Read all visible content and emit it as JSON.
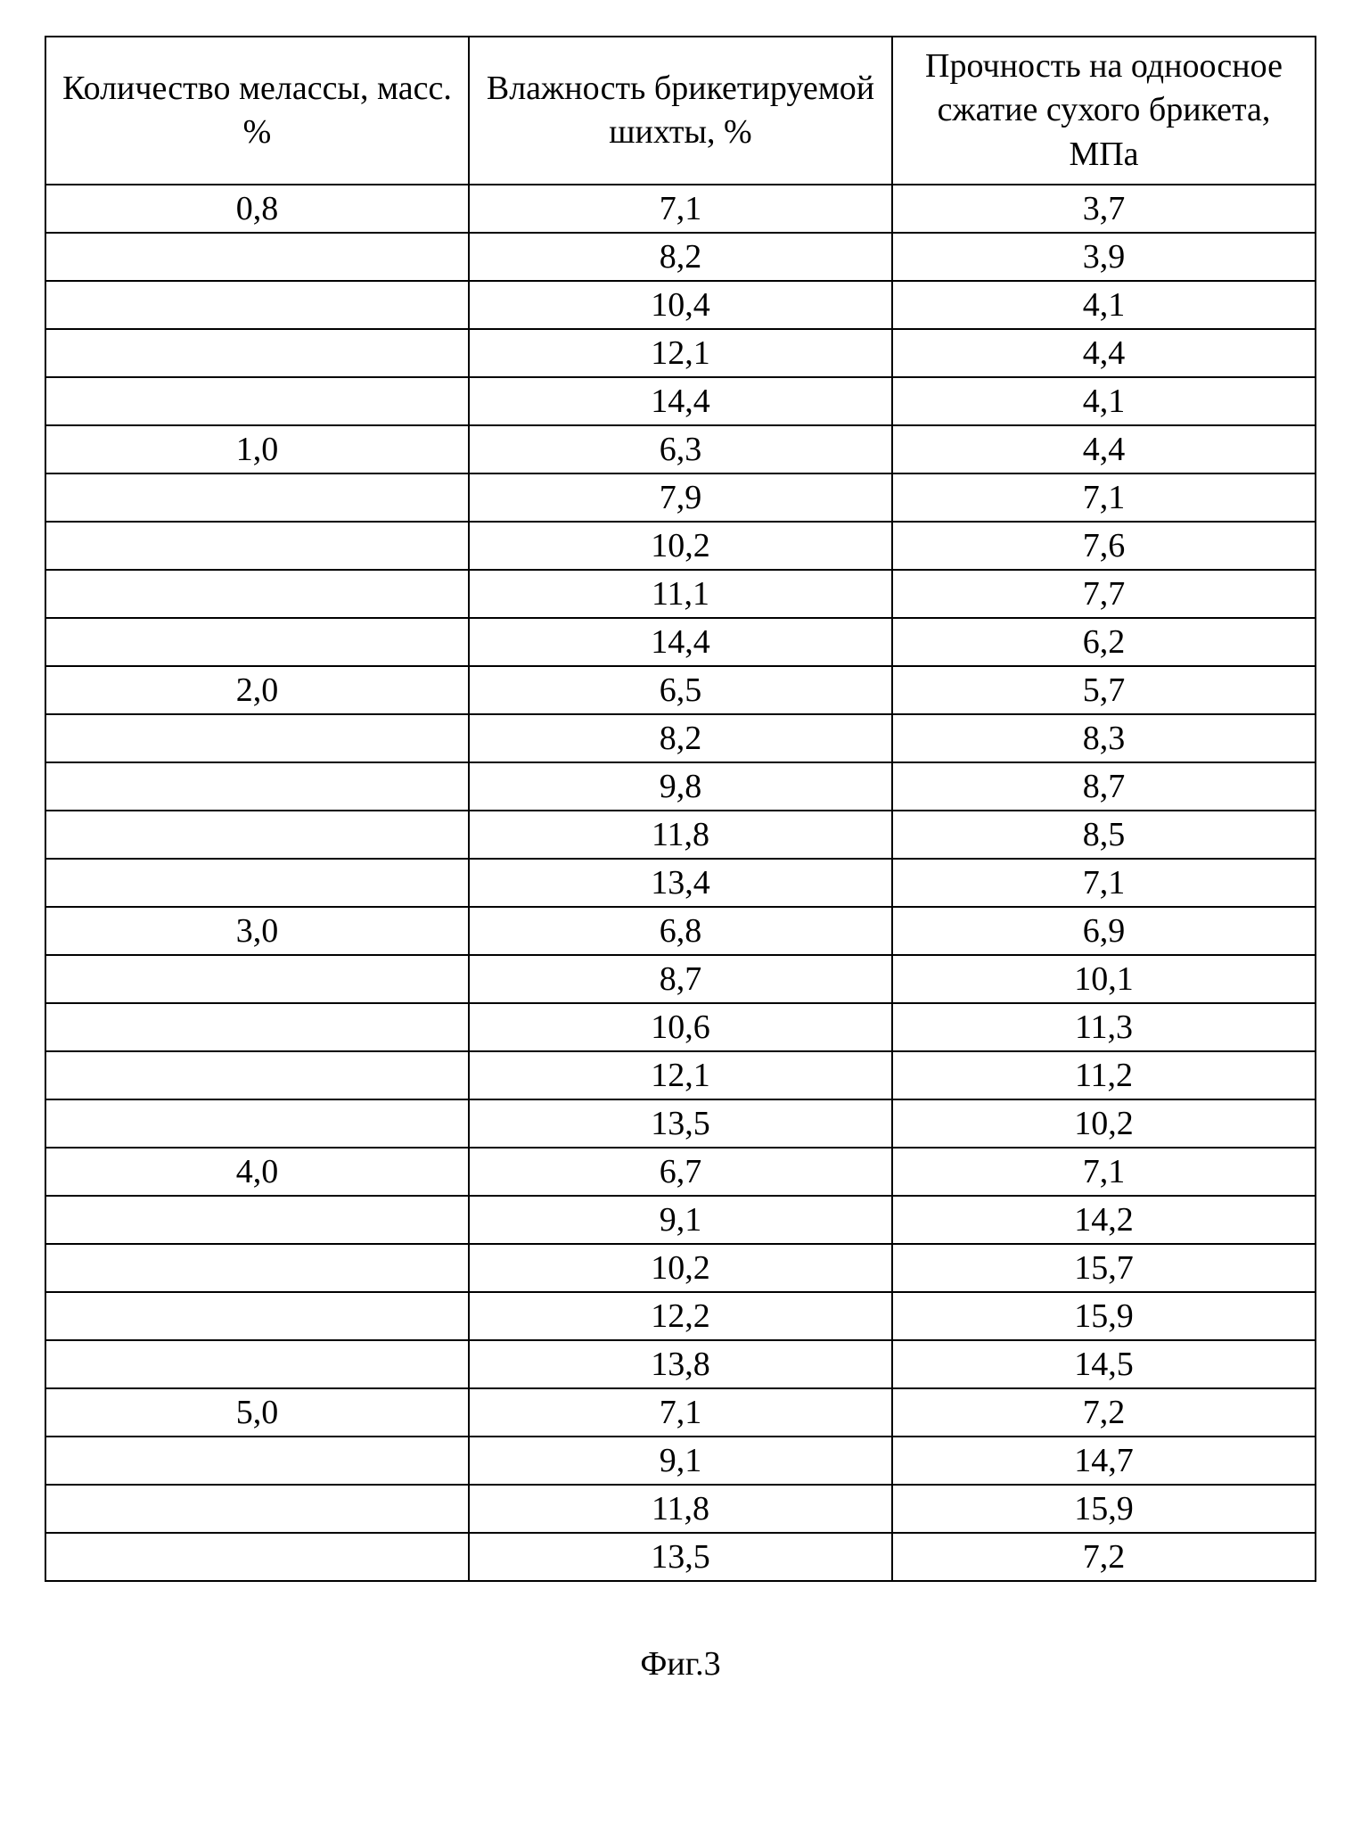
{
  "table": {
    "columns": [
      "Количество мелассы, масс. %",
      "Влажность брикетируемой шихты, %",
      "Прочность на одноосное сжатие сухого брикета, МПа"
    ],
    "rows": [
      [
        "0,8",
        "7,1",
        "3,7"
      ],
      [
        "",
        "8,2",
        "3,9"
      ],
      [
        "",
        "10,4",
        "4,1"
      ],
      [
        "",
        "12,1",
        "4,4"
      ],
      [
        "",
        "14,4",
        "4,1"
      ],
      [
        "1,0",
        "6,3",
        "4,4"
      ],
      [
        "",
        "7,9",
        "7,1"
      ],
      [
        "",
        "10,2",
        "7,6"
      ],
      [
        "",
        "11,1",
        "7,7"
      ],
      [
        "",
        "14,4",
        "6,2"
      ],
      [
        "2,0",
        "6,5",
        "5,7"
      ],
      [
        "",
        "8,2",
        "8,3"
      ],
      [
        "",
        "9,8",
        "8,7"
      ],
      [
        "",
        "11,8",
        "8,5"
      ],
      [
        "",
        "13,4",
        "7,1"
      ],
      [
        "3,0",
        "6,8",
        "6,9"
      ],
      [
        "",
        "8,7",
        "10,1"
      ],
      [
        "",
        "10,6",
        "11,3"
      ],
      [
        "",
        "12,1",
        "11,2"
      ],
      [
        "",
        "13,5",
        "10,2"
      ],
      [
        "4,0",
        "6,7",
        "7,1"
      ],
      [
        "",
        "9,1",
        "14,2"
      ],
      [
        "",
        "10,2",
        "15,7"
      ],
      [
        "",
        "12,2",
        "15,9"
      ],
      [
        "",
        "13,8",
        "14,5"
      ],
      [
        "5,0",
        "7,1",
        "7,2"
      ],
      [
        "",
        "9,1",
        "14,7"
      ],
      [
        "",
        "11,8",
        "15,9"
      ],
      [
        "",
        "13,5",
        "7,2"
      ]
    ],
    "column_widths": [
      "33.3%",
      "33.3%",
      "33.4%"
    ],
    "border_color": "#000000",
    "background_color": "#ffffff",
    "text_color": "#000000",
    "font_family": "Times New Roman",
    "header_fontsize": 38,
    "cell_fontsize": 38
  },
  "caption": "Фиг.3"
}
